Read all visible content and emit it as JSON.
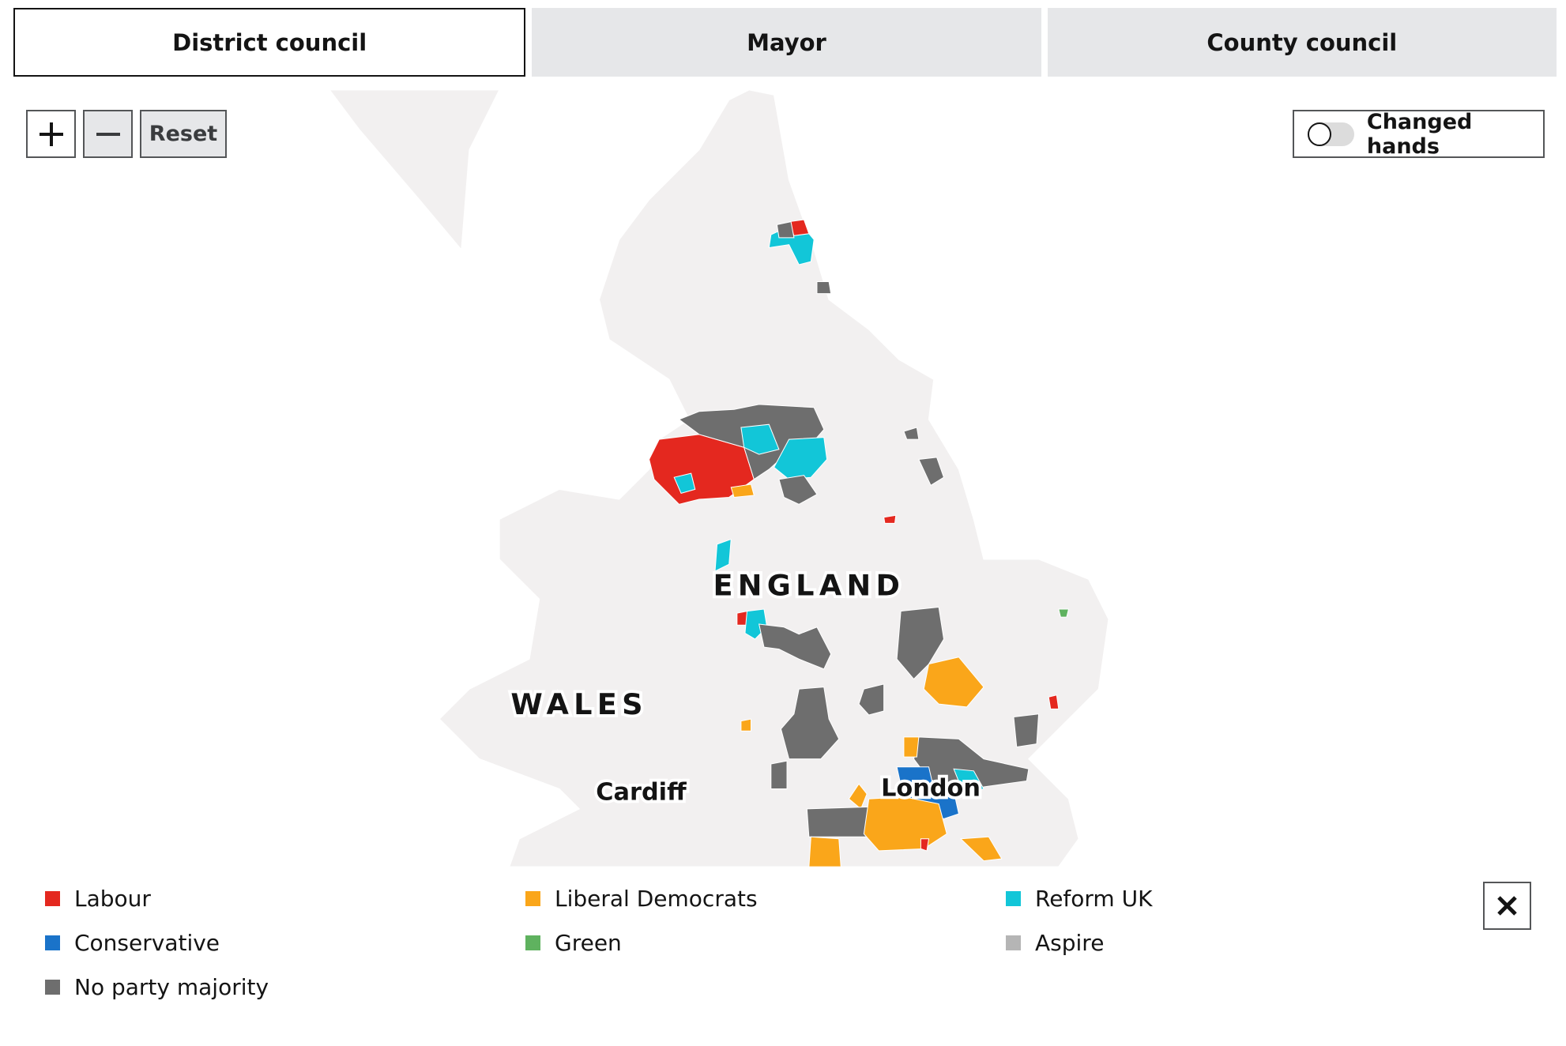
{
  "tabs": [
    {
      "label": "District council",
      "active": true
    },
    {
      "label": "Mayor",
      "active": false
    },
    {
      "label": "County council",
      "active": false
    }
  ],
  "controls": {
    "reset": "Reset"
  },
  "toggle": {
    "label": "Changed hands",
    "on": false
  },
  "map": {
    "labels": [
      "ENGLAND",
      "WALES",
      "Cardiff",
      "London"
    ]
  },
  "legend": [
    {
      "name": "Labour",
      "color": "#e4281f"
    },
    {
      "name": "Liberal Democrats",
      "color": "#faa61a"
    },
    {
      "name": "Reform UK",
      "color": "#12c6d8"
    },
    {
      "name": "Conservative",
      "color": "#1a73c9"
    },
    {
      "name": "Green",
      "color": "#5fb25f"
    },
    {
      "name": "Aspire",
      "color": "#b5b5b5"
    },
    {
      "name": "No party majority",
      "color": "#6e6e6e"
    }
  ]
}
